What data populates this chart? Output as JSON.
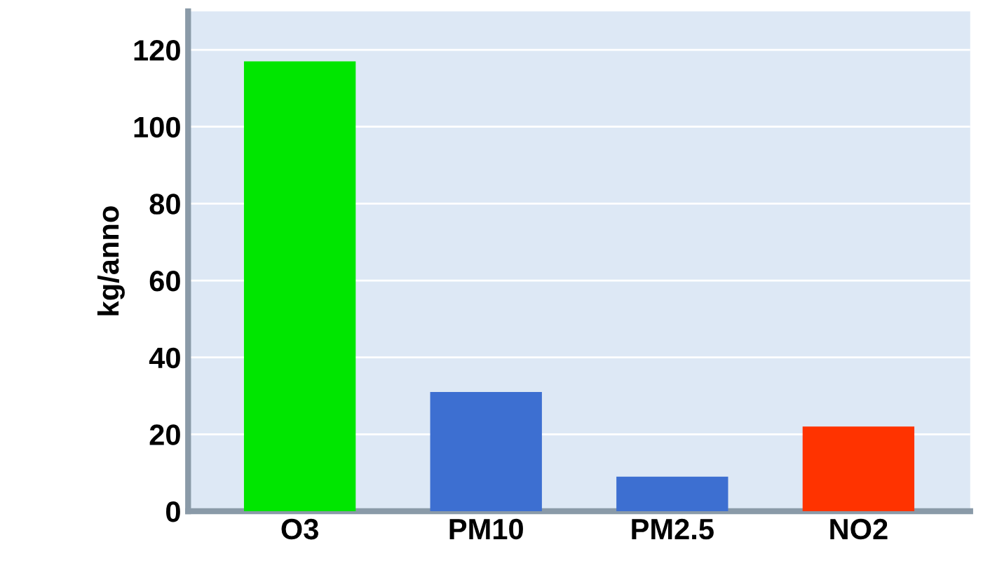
{
  "chart_data": {
    "type": "bar",
    "ylabel": "kg/anno",
    "categories": [
      "O3",
      "PM10",
      "PM2.5",
      "NO2"
    ],
    "values": [
      117,
      31,
      9,
      22
    ],
    "colors": [
      "#00e600",
      "#3d6fd1",
      "#3d6fd1",
      "#ff3300"
    ],
    "ylim": [
      0,
      130
    ],
    "yticks": [
      0,
      20,
      40,
      60,
      80,
      100,
      120
    ],
    "grid": "y"
  }
}
